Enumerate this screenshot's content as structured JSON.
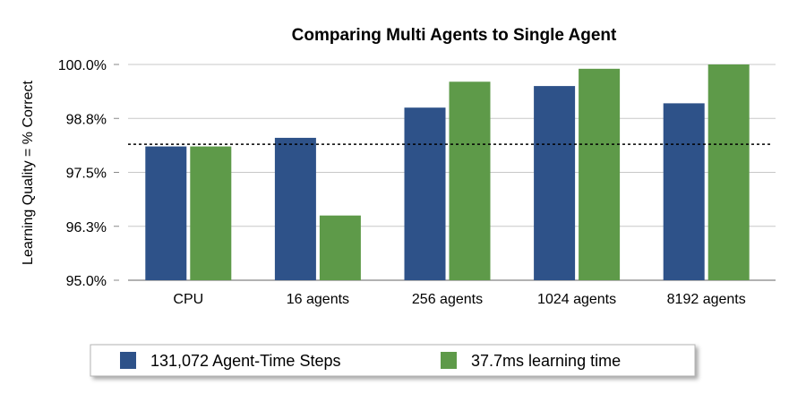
{
  "chart_data": {
    "type": "bar",
    "title": "Comparing Multi Agents to Single Agent",
    "xlabel": "",
    "ylabel": "Learning Quality = % Correct",
    "categories": [
      "CPU",
      "16 agents",
      "256 agents",
      "1024 agents",
      "8192 agents"
    ],
    "series": [
      {
        "name": "131,072 Agent-Time Steps",
        "color": "#2e5289",
        "values": [
          98.1,
          98.3,
          99.0,
          99.5,
          99.1
        ]
      },
      {
        "name": "37.7ms learning time",
        "color": "#5e9a49",
        "values": [
          98.1,
          96.5,
          99.6,
          99.9,
          100.0
        ]
      }
    ],
    "ylim": [
      95.0,
      100.0
    ],
    "yticks": [
      95.0,
      96.25,
      97.5,
      98.75,
      100.0
    ],
    "ytick_labels": [
      "95.0%",
      "96.3%",
      "97.5%",
      "98.8%",
      "100.0%"
    ],
    "reference_line": {
      "value": 98.15,
      "style": "dotted"
    },
    "grid": true,
    "legend_position": "bottom"
  }
}
